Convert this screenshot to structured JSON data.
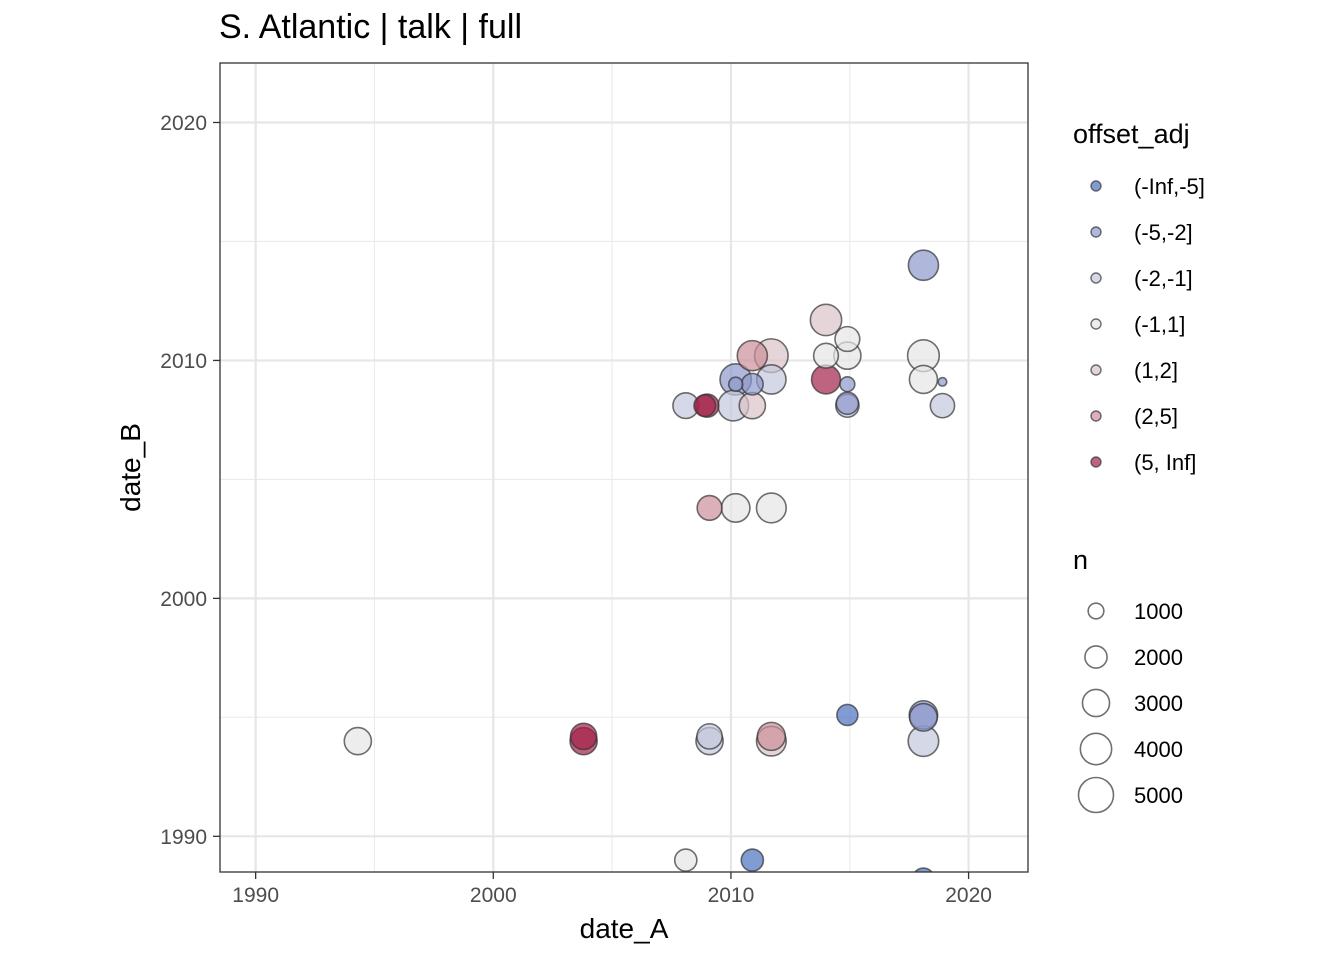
{
  "chart_data": {
    "type": "scatter",
    "title": "S. Atlantic | talk | full",
    "xlabel": "date_A",
    "ylabel": "date_B",
    "xlim": [
      1988.5,
      2022.5
    ],
    "ylim": [
      1988.5,
      2022.5
    ],
    "x_ticks": [
      1990,
      2000,
      2010,
      2020
    ],
    "y_ticks": [
      1990,
      2000,
      2010,
      2020
    ],
    "x_tick_labels": [
      "1990",
      "2000",
      "2010",
      "2020"
    ],
    "y_tick_labels": [
      "1990",
      "2000",
      "2010",
      "2020"
    ],
    "grid": true,
    "legend_placement": "right",
    "color_legend": {
      "title": "offset_adj",
      "items": [
        {
          "label": "(-Inf,-5]",
          "color": "#4a72c0"
        },
        {
          "label": "(-5,-2]",
          "color": "#8d98cc"
        },
        {
          "label": "(-2,-1]",
          "color": "#c3c8dc"
        },
        {
          "label": "(-1,1]",
          "color": "#e6e6e6"
        },
        {
          "label": "(1,2]",
          "color": "#dcc3c8"
        },
        {
          "label": "(2,5]",
          "color": "#cc8e9a"
        },
        {
          "label": "(5, Inf]",
          "color": "#a3224a"
        }
      ]
    },
    "size_legend": {
      "title": "n",
      "items": [
        {
          "label": "1000",
          "value": 1000
        },
        {
          "label": "2000",
          "value": 2000
        },
        {
          "label": "3000",
          "value": 3000
        },
        {
          "label": "4000",
          "value": 4000
        },
        {
          "label": "5000",
          "value": 5000
        }
      ]
    },
    "points": [
      {
        "x": 1994.3,
        "y": 1994.0,
        "category": "(-1,1]",
        "n": 3000
      },
      {
        "x": 2003.8,
        "y": 1994.2,
        "category": "(5, Inf]",
        "n": 2800
      },
      {
        "x": 2003.8,
        "y": 1994.0,
        "category": "(5, Inf]",
        "n": 3000
      },
      {
        "x": 2009.1,
        "y": 1994.2,
        "category": "(-2,-1]",
        "n": 2600
      },
      {
        "x": 2009.1,
        "y": 1994.0,
        "category": "(-2,-1]",
        "n": 3000
      },
      {
        "x": 2011.7,
        "y": 1994.2,
        "category": "(2,5]",
        "n": 3200
      },
      {
        "x": 2011.7,
        "y": 1994.0,
        "category": "(1,2]",
        "n": 3600
      },
      {
        "x": 2014.9,
        "y": 1995.1,
        "category": "(-Inf,-5]",
        "n": 1800
      },
      {
        "x": 2018.1,
        "y": 1995.1,
        "category": "(-5,-2]",
        "n": 3300
      },
      {
        "x": 2018.1,
        "y": 1995.0,
        "category": "(-5,-2]",
        "n": 3100
      },
      {
        "x": 2018.1,
        "y": 1994.0,
        "category": "(-2,-1]",
        "n": 3800
      },
      {
        "x": 2008.1,
        "y": 1989.0,
        "category": "(-1,1]",
        "n": 2000
      },
      {
        "x": 2010.9,
        "y": 1989.0,
        "category": "(-Inf,-5]",
        "n": 2000
      },
      {
        "x": 2018.1,
        "y": 1988.2,
        "category": "(-Inf,-5]",
        "n": 2000
      },
      {
        "x": 2009.1,
        "y": 2003.8,
        "category": "(2,5]",
        "n": 2500
      },
      {
        "x": 2010.2,
        "y": 2003.8,
        "category": "(-1,1]",
        "n": 3300
      },
      {
        "x": 2011.7,
        "y": 2003.8,
        "category": "(-1,1]",
        "n": 3600
      },
      {
        "x": 2008.1,
        "y": 2008.1,
        "category": "(-2,-1]",
        "n": 2700
      },
      {
        "x": 2008.9,
        "y": 2008.1,
        "category": "(5, Inf]",
        "n": 1900
      },
      {
        "x": 2009.0,
        "y": 2008.1,
        "category": "(5, Inf]",
        "n": 2200
      },
      {
        "x": 2010.1,
        "y": 2008.1,
        "category": "(-2,-1]",
        "n": 3800
      },
      {
        "x": 2010.9,
        "y": 2008.1,
        "category": "(1,2]",
        "n": 2800
      },
      {
        "x": 2010.2,
        "y": 2009.2,
        "category": "(-5,-2]",
        "n": 4000
      },
      {
        "x": 2010.2,
        "y": 2009.0,
        "category": "(-5,-2]",
        "n": 800
      },
      {
        "x": 2010.9,
        "y": 2009.0,
        "category": "(-5,-2]",
        "n": 1900
      },
      {
        "x": 2010.9,
        "y": 2010.2,
        "category": "(2,5]",
        "n": 3700
      },
      {
        "x": 2011.7,
        "y": 2010.2,
        "category": "(1,2]",
        "n": 4600
      },
      {
        "x": 2011.7,
        "y": 2009.2,
        "category": "(-2,-1]",
        "n": 3500
      },
      {
        "x": 2014.0,
        "y": 2011.7,
        "category": "(1,2]",
        "n": 4000
      },
      {
        "x": 2014.0,
        "y": 2010.2,
        "category": "(-1,1]",
        "n": 2500
      },
      {
        "x": 2014.0,
        "y": 2009.2,
        "category": "(5, Inf]",
        "n": 3400
      },
      {
        "x": 2014.9,
        "y": 2010.9,
        "category": "(-1,1]",
        "n": 2500
      },
      {
        "x": 2014.9,
        "y": 2010.2,
        "category": "(-1,1]",
        "n": 3000
      },
      {
        "x": 2014.9,
        "y": 2009.0,
        "category": "(-5,-2]",
        "n": 900
      },
      {
        "x": 2014.9,
        "y": 2008.2,
        "category": "(-5,-2]",
        "n": 2000
      },
      {
        "x": 2014.9,
        "y": 2008.1,
        "category": "(-2,-1]",
        "n": 2200
      },
      {
        "x": 2018.1,
        "y": 2014.0,
        "category": "(-5,-2]",
        "n": 3700
      },
      {
        "x": 2018.1,
        "y": 2010.2,
        "category": "(-1,1]",
        "n": 4100
      },
      {
        "x": 2018.1,
        "y": 2009.2,
        "category": "(-1,1]",
        "n": 3200
      },
      {
        "x": 2018.9,
        "y": 2009.1,
        "category": "(-5,-2]",
        "n": 300
      },
      {
        "x": 2018.9,
        "y": 2008.1,
        "category": "(-2,-1]",
        "n": 2400
      }
    ]
  }
}
